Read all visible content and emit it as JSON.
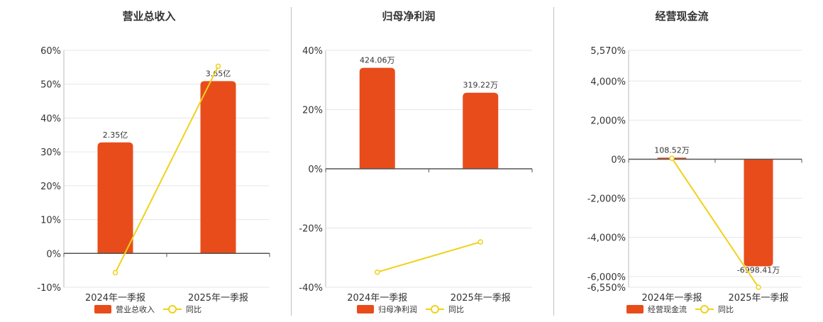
{
  "colors": {
    "bar": "#e84c1b",
    "line": "#f0d11a",
    "grid": "#e6e6ec",
    "axis": "#555555"
  },
  "chart_data": [
    {
      "type": "bar",
      "title": "营业总收入",
      "categories": [
        "2024年一季报",
        "2025年一季报"
      ],
      "ylim": [
        -10,
        60
      ],
      "yticks": [
        -10,
        0,
        10,
        20,
        30,
        40,
        50,
        60
      ],
      "ytick_labels": [
        "-10%",
        "0%",
        "10%",
        "20%",
        "30%",
        "40%",
        "50%",
        "60%"
      ],
      "series": [
        {
          "name": "营业总收入",
          "kind": "bar",
          "values": [
            32.8,
            50.9
          ],
          "labels": [
            "2.35亿",
            "3.65亿"
          ]
        },
        {
          "name": "同比",
          "kind": "line",
          "values": [
            -5.7,
            55.3
          ]
        }
      ],
      "grid": true,
      "legend": "bottom"
    },
    {
      "type": "bar",
      "title": "归母净利润",
      "categories": [
        "2024年一季报",
        "2025年一季报"
      ],
      "ylim": [
        -40,
        40
      ],
      "yticks": [
        -40,
        -20,
        0,
        20,
        40
      ],
      "ytick_labels": [
        "-40%",
        "-20%",
        "0%",
        "20%",
        "40%"
      ],
      "series": [
        {
          "name": "归母净利润",
          "kind": "bar",
          "values": [
            34.1,
            25.7
          ],
          "labels": [
            "424.06万",
            "319.22万"
          ]
        },
        {
          "name": "同比",
          "kind": "line",
          "values": [
            -34.9,
            -24.7
          ]
        }
      ],
      "grid": true,
      "legend": "bottom"
    },
    {
      "type": "bar",
      "title": "经营现金流",
      "categories": [
        "2024年一季报",
        "2025年一季报"
      ],
      "ylim": [
        -6550,
        5570
      ],
      "yticks": [
        -6550,
        -6000,
        -4000,
        -2000,
        0,
        2000,
        4000,
        5570
      ],
      "ytick_labels": [
        "-6,550%",
        "-6,000%",
        "-4,000%",
        "-2,000%",
        "0%",
        "2,000%",
        "4,000%",
        "5,570%"
      ],
      "series": [
        {
          "name": "经营现金流",
          "kind": "bar",
          "values": [
            80,
            -5480
          ],
          "labels": [
            "108.52万",
            "-6998.41万"
          ]
        },
        {
          "name": "同比",
          "kind": "line",
          "values": [
            50,
            -6550
          ]
        }
      ],
      "grid": true,
      "legend": "bottom"
    }
  ]
}
